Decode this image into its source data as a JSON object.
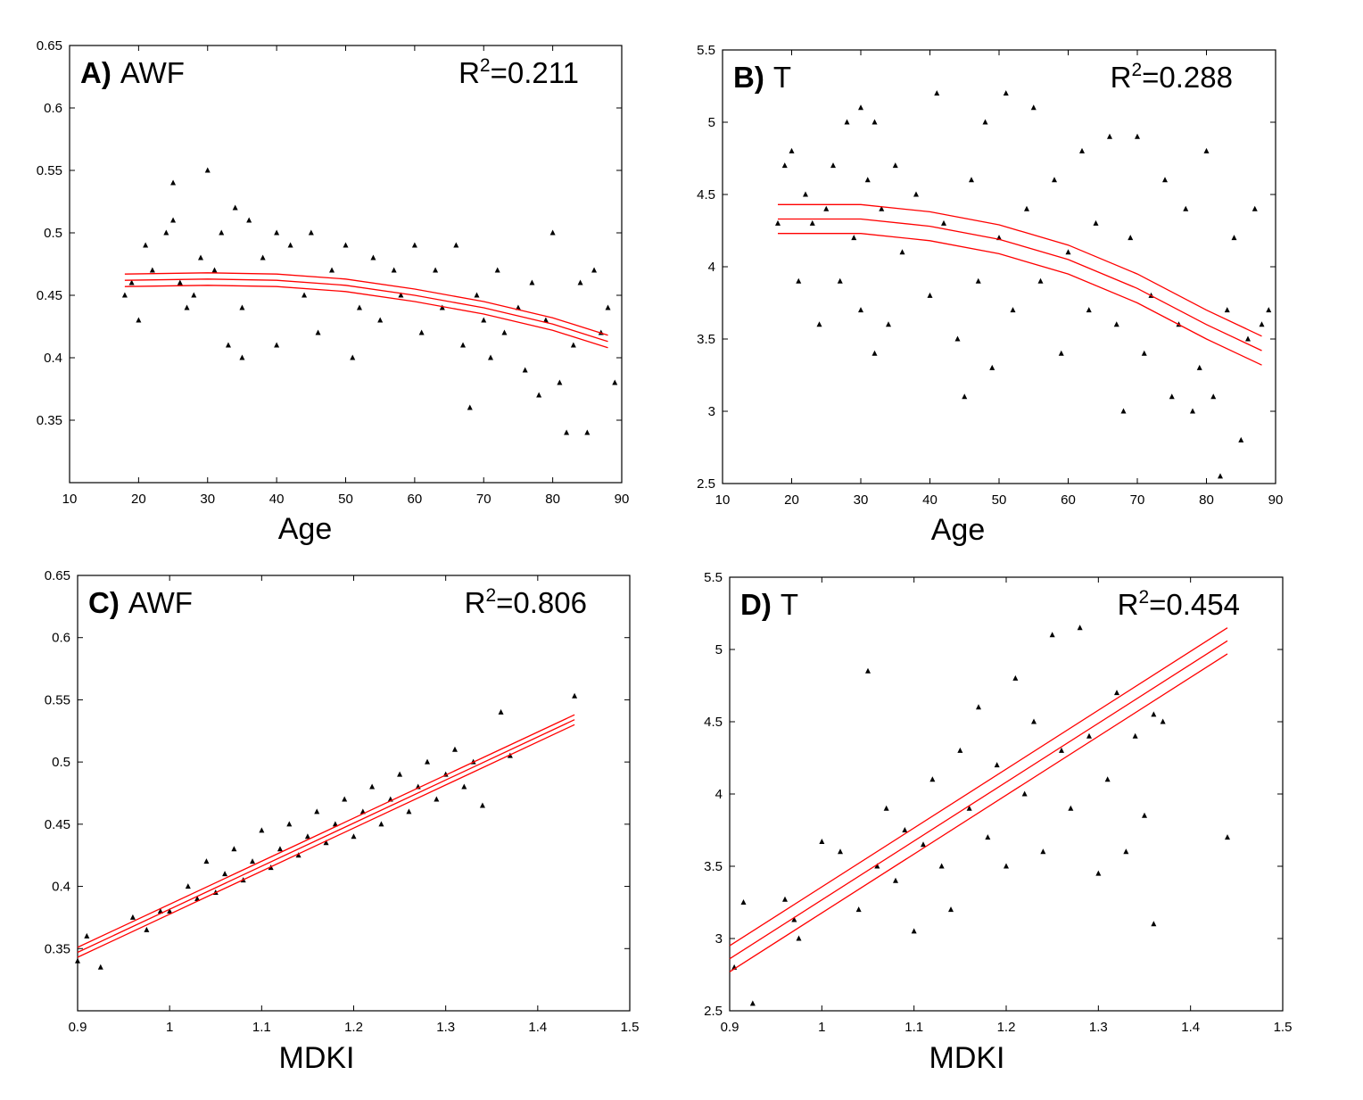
{
  "chart_data": [
    {
      "type": "scatter",
      "panel_letter": "A)",
      "variable": "AWF",
      "r2_prefix": "R",
      "r2_exp": "2",
      "r2_value": "=0.211",
      "xlabel": "Age",
      "xlim": [
        10,
        90
      ],
      "ylim": [
        0.3,
        0.65
      ],
      "xticks": [
        "10",
        "20",
        "30",
        "40",
        "50",
        "60",
        "70",
        "80",
        "90"
      ],
      "yticks": [
        "0.35",
        "0.4",
        "0.45",
        "0.5",
        "0.55",
        "0.6",
        "0.65"
      ],
      "points": [
        [
          18,
          0.45
        ],
        [
          19,
          0.46
        ],
        [
          20,
          0.43
        ],
        [
          21,
          0.49
        ],
        [
          22,
          0.47
        ],
        [
          24,
          0.5
        ],
        [
          25,
          0.54
        ],
        [
          25,
          0.51
        ],
        [
          26,
          0.46
        ],
        [
          27,
          0.44
        ],
        [
          28,
          0.45
        ],
        [
          29,
          0.48
        ],
        [
          30,
          0.55
        ],
        [
          31,
          0.47
        ],
        [
          32,
          0.5
        ],
        [
          33,
          0.41
        ],
        [
          34,
          0.52
        ],
        [
          35,
          0.44
        ],
        [
          35,
          0.4
        ],
        [
          36,
          0.51
        ],
        [
          38,
          0.48
        ],
        [
          40,
          0.5
        ],
        [
          40,
          0.41
        ],
        [
          42,
          0.49
        ],
        [
          44,
          0.45
        ],
        [
          45,
          0.5
        ],
        [
          46,
          0.42
        ],
        [
          48,
          0.47
        ],
        [
          50,
          0.49
        ],
        [
          51,
          0.4
        ],
        [
          52,
          0.44
        ],
        [
          54,
          0.48
        ],
        [
          55,
          0.43
        ],
        [
          57,
          0.47
        ],
        [
          58,
          0.45
        ],
        [
          60,
          0.49
        ],
        [
          61,
          0.42
        ],
        [
          63,
          0.47
        ],
        [
          64,
          0.44
        ],
        [
          66,
          0.49
        ],
        [
          67,
          0.41
        ],
        [
          68,
          0.36
        ],
        [
          69,
          0.45
        ],
        [
          70,
          0.43
        ],
        [
          71,
          0.4
        ],
        [
          72,
          0.47
        ],
        [
          73,
          0.42
        ],
        [
          75,
          0.44
        ],
        [
          76,
          0.39
        ],
        [
          77,
          0.46
        ],
        [
          78,
          0.37
        ],
        [
          79,
          0.43
        ],
        [
          80,
          0.5
        ],
        [
          81,
          0.38
        ],
        [
          82,
          0.34
        ],
        [
          83,
          0.41
        ],
        [
          84,
          0.46
        ],
        [
          85,
          0.34
        ],
        [
          86,
          0.47
        ],
        [
          87,
          0.42
        ],
        [
          88,
          0.44
        ],
        [
          89,
          0.38
        ]
      ],
      "fit": {
        "x": [
          18,
          30,
          40,
          50,
          60,
          70,
          80,
          88
        ],
        "y": [
          0.462,
          0.463,
          0.462,
          0.458,
          0.45,
          0.44,
          0.427,
          0.413
        ],
        "band": 0.005
      }
    },
    {
      "type": "scatter",
      "panel_letter": "B)",
      "variable": "T",
      "r2_prefix": "R",
      "r2_exp": "2",
      "r2_value": "=0.288",
      "xlabel": "Age",
      "xlim": [
        10,
        90
      ],
      "ylim": [
        2.5,
        5.5
      ],
      "xticks": [
        "10",
        "20",
        "30",
        "40",
        "50",
        "60",
        "70",
        "80",
        "90"
      ],
      "yticks": [
        "2.5",
        "3",
        "3.5",
        "4",
        "4.5",
        "5",
        "5.5"
      ],
      "points": [
        [
          18,
          4.3
        ],
        [
          19,
          4.7
        ],
        [
          20,
          4.8
        ],
        [
          21,
          3.9
        ],
        [
          22,
          4.5
        ],
        [
          23,
          4.3
        ],
        [
          24,
          3.6
        ],
        [
          25,
          4.4
        ],
        [
          26,
          4.7
        ],
        [
          27,
          3.9
        ],
        [
          28,
          5.0
        ],
        [
          29,
          4.2
        ],
        [
          30,
          3.7
        ],
        [
          30,
          5.1
        ],
        [
          31,
          4.6
        ],
        [
          32,
          3.4
        ],
        [
          32,
          5.0
        ],
        [
          33,
          4.4
        ],
        [
          34,
          3.6
        ],
        [
          35,
          4.7
        ],
        [
          36,
          4.1
        ],
        [
          38,
          4.5
        ],
        [
          40,
          3.8
        ],
        [
          41,
          5.2
        ],
        [
          42,
          4.3
        ],
        [
          44,
          3.5
        ],
        [
          45,
          3.1
        ],
        [
          46,
          4.6
        ],
        [
          47,
          3.9
        ],
        [
          48,
          5.0
        ],
        [
          49,
          3.3
        ],
        [
          50,
          4.2
        ],
        [
          51,
          5.2
        ],
        [
          52,
          3.7
        ],
        [
          54,
          4.4
        ],
        [
          55,
          5.1
        ],
        [
          56,
          3.9
        ],
        [
          58,
          4.6
        ],
        [
          59,
          3.4
        ],
        [
          60,
          4.1
        ],
        [
          62,
          4.8
        ],
        [
          63,
          3.7
        ],
        [
          64,
          4.3
        ],
        [
          66,
          4.9
        ],
        [
          67,
          3.6
        ],
        [
          68,
          3.0
        ],
        [
          69,
          4.2
        ],
        [
          70,
          4.9
        ],
        [
          71,
          3.4
        ],
        [
          72,
          3.8
        ],
        [
          74,
          4.6
        ],
        [
          75,
          3.1
        ],
        [
          76,
          3.6
        ],
        [
          77,
          4.4
        ],
        [
          78,
          3.0
        ],
        [
          79,
          3.3
        ],
        [
          80,
          4.8
        ],
        [
          81,
          3.1
        ],
        [
          82,
          2.55
        ],
        [
          83,
          3.7
        ],
        [
          84,
          4.2
        ],
        [
          85,
          2.8
        ],
        [
          86,
          3.5
        ],
        [
          87,
          4.4
        ],
        [
          88,
          3.6
        ],
        [
          89,
          3.7
        ]
      ],
      "fit": {
        "x": [
          18,
          30,
          40,
          50,
          60,
          70,
          80,
          88
        ],
        "y": [
          4.33,
          4.33,
          4.28,
          4.19,
          4.05,
          3.85,
          3.6,
          3.42
        ],
        "band": 0.1
      }
    },
    {
      "type": "scatter",
      "panel_letter": "C)",
      "variable": "AWF",
      "r2_prefix": "R",
      "r2_exp": "2",
      "r2_value": "=0.806",
      "xlabel": "MDKI",
      "xlim": [
        0.9,
        1.5
      ],
      "ylim": [
        0.3,
        0.65
      ],
      "xticks": [
        "0.9",
        "1",
        "1.1",
        "1.2",
        "1.3",
        "1.4",
        "1.5"
      ],
      "yticks": [
        "0.35",
        "0.4",
        "0.45",
        "0.5",
        "0.55",
        "0.6",
        "0.65"
      ],
      "points": [
        [
          0.9,
          0.34
        ],
        [
          0.91,
          0.36
        ],
        [
          0.925,
          0.335
        ],
        [
          0.96,
          0.375
        ],
        [
          0.975,
          0.365
        ],
        [
          0.99,
          0.38
        ],
        [
          1.0,
          0.38
        ],
        [
          1.02,
          0.4
        ],
        [
          1.03,
          0.39
        ],
        [
          1.04,
          0.42
        ],
        [
          1.05,
          0.395
        ],
        [
          1.06,
          0.41
        ],
        [
          1.07,
          0.43
        ],
        [
          1.08,
          0.405
        ],
        [
          1.09,
          0.42
        ],
        [
          1.1,
          0.445
        ],
        [
          1.11,
          0.415
        ],
        [
          1.12,
          0.43
        ],
        [
          1.13,
          0.45
        ],
        [
          1.14,
          0.425
        ],
        [
          1.15,
          0.44
        ],
        [
          1.16,
          0.46
        ],
        [
          1.17,
          0.435
        ],
        [
          1.18,
          0.45
        ],
        [
          1.19,
          0.47
        ],
        [
          1.2,
          0.44
        ],
        [
          1.21,
          0.46
        ],
        [
          1.22,
          0.48
        ],
        [
          1.23,
          0.45
        ],
        [
          1.24,
          0.47
        ],
        [
          1.25,
          0.49
        ],
        [
          1.26,
          0.46
        ],
        [
          1.27,
          0.48
        ],
        [
          1.28,
          0.5
        ],
        [
          1.29,
          0.47
        ],
        [
          1.3,
          0.49
        ],
        [
          1.31,
          0.51
        ],
        [
          1.32,
          0.48
        ],
        [
          1.33,
          0.5
        ],
        [
          1.34,
          0.465
        ],
        [
          1.36,
          0.54
        ],
        [
          1.37,
          0.505
        ],
        [
          1.44,
          0.553
        ]
      ],
      "fit": {
        "x": [
          0.9,
          1.44
        ],
        "y": [
          0.347,
          0.534
        ],
        "band": 0.004
      }
    },
    {
      "type": "scatter",
      "panel_letter": "D)",
      "variable": "T",
      "r2_prefix": "R",
      "r2_exp": "2",
      "r2_value": "=0.454",
      "xlabel": "MDKI",
      "xlim": [
        0.9,
        1.5
      ],
      "ylim": [
        2.5,
        5.5
      ],
      "xticks": [
        "0.9",
        "1",
        "1.1",
        "1.2",
        "1.3",
        "1.4",
        "1.5"
      ],
      "yticks": [
        "2.5",
        "3",
        "3.5",
        "4",
        "4.5",
        "5",
        "5.5"
      ],
      "points": [
        [
          0.905,
          2.8
        ],
        [
          0.915,
          3.25
        ],
        [
          0.925,
          2.55
        ],
        [
          0.96,
          3.27
        ],
        [
          0.97,
          3.13
        ],
        [
          0.975,
          3.0
        ],
        [
          1.0,
          3.67
        ],
        [
          1.02,
          3.6
        ],
        [
          1.04,
          3.2
        ],
        [
          1.05,
          4.85
        ],
        [
          1.06,
          3.5
        ],
        [
          1.07,
          3.9
        ],
        [
          1.08,
          3.4
        ],
        [
          1.09,
          3.75
        ],
        [
          1.1,
          3.05
        ],
        [
          1.11,
          3.65
        ],
        [
          1.12,
          4.1
        ],
        [
          1.13,
          3.5
        ],
        [
          1.14,
          3.2
        ],
        [
          1.15,
          4.3
        ],
        [
          1.16,
          3.9
        ],
        [
          1.17,
          4.6
        ],
        [
          1.18,
          3.7
        ],
        [
          1.19,
          4.2
        ],
        [
          1.2,
          3.5
        ],
        [
          1.21,
          4.8
        ],
        [
          1.22,
          4.0
        ],
        [
          1.23,
          4.5
        ],
        [
          1.24,
          3.6
        ],
        [
          1.25,
          5.1
        ],
        [
          1.26,
          4.3
        ],
        [
          1.27,
          3.9
        ],
        [
          1.28,
          5.15
        ],
        [
          1.29,
          4.4
        ],
        [
          1.3,
          3.45
        ],
        [
          1.31,
          4.1
        ],
        [
          1.32,
          4.7
        ],
        [
          1.33,
          3.6
        ],
        [
          1.34,
          4.4
        ],
        [
          1.35,
          3.85
        ],
        [
          1.36,
          4.55
        ],
        [
          1.37,
          4.5
        ],
        [
          1.44,
          3.7
        ],
        [
          1.36,
          3.1
        ]
      ],
      "fit": {
        "x": [
          0.9,
          1.44
        ],
        "y": [
          2.86,
          5.06
        ],
        "band": 0.09
      }
    }
  ]
}
